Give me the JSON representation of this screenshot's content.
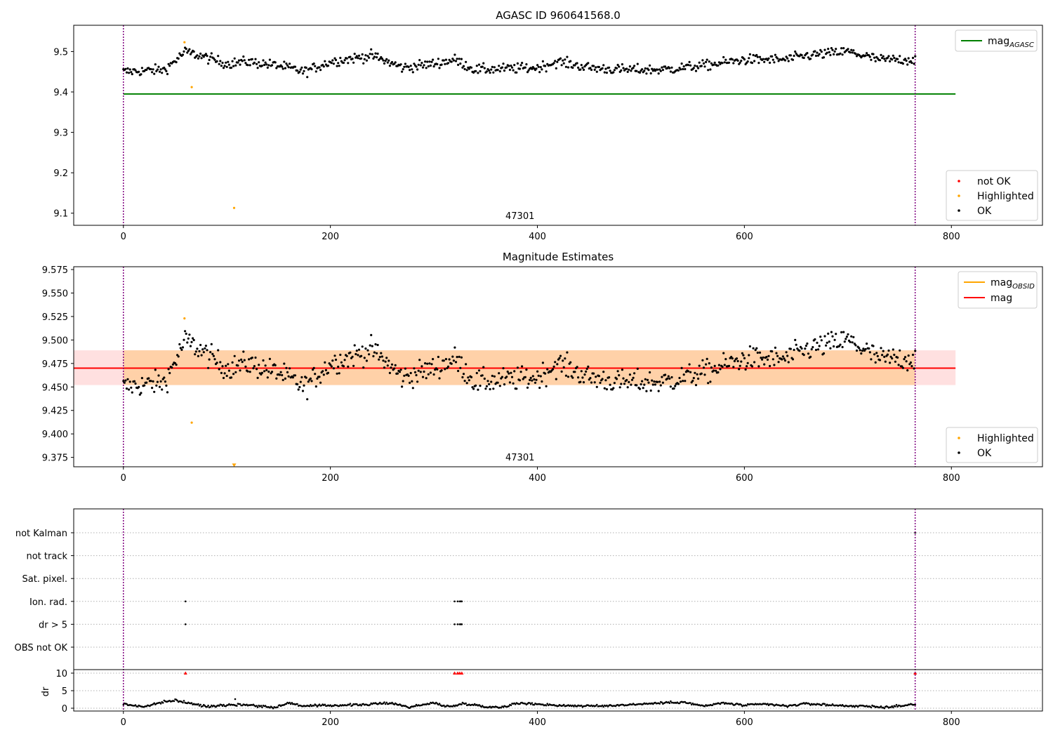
{
  "chart_data": [
    {
      "type": "scatter",
      "title": "AGASC ID 960641568.0",
      "xlim": [
        -48,
        888
      ],
      "ylim": [
        9.07,
        9.565
      ],
      "xticks": [
        0,
        200,
        400,
        600,
        800
      ],
      "yticks": [
        9.1,
        9.2,
        9.3,
        9.4,
        9.5
      ],
      "ytick_labels": [
        "9.1",
        "9.2",
        "9.3",
        "9.4",
        "9.5"
      ],
      "obsid_label": "47301",
      "obsid_label_x": 380,
      "vlines_x": [
        0,
        765
      ],
      "mag_agasc": {
        "value": 9.395,
        "x_range": [
          0,
          804
        ],
        "color": "#008000"
      },
      "legend_lines": [
        {
          "label": "mag",
          "sub": "AGASC",
          "color": "#008000"
        }
      ],
      "legend_points": [
        {
          "label": "not OK",
          "color": "#ff0000"
        },
        {
          "label": "Highlighted",
          "color": "#ffa500"
        },
        {
          "label": "OK",
          "color": "#000000"
        }
      ],
      "series": [
        {
          "name": "OK",
          "color": "#000000",
          "x_start": 0,
          "x_end": 765,
          "n": 720,
          "base": 9.47,
          "anchors": [
            [
              0,
              9.45
            ],
            [
              40,
              9.455
            ],
            [
              60,
              9.5
            ],
            [
              80,
              9.485
            ],
            [
              100,
              9.47
            ],
            [
              120,
              9.475
            ],
            [
              150,
              9.465
            ],
            [
              175,
              9.45
            ],
            [
              200,
              9.475
            ],
            [
              240,
              9.49
            ],
            [
              270,
              9.46
            ],
            [
              300,
              9.47
            ],
            [
              320,
              9.48
            ],
            [
              340,
              9.455
            ],
            [
              400,
              9.46
            ],
            [
              420,
              9.475
            ],
            [
              450,
              9.46
            ],
            [
              480,
              9.455
            ],
            [
              520,
              9.455
            ],
            [
              560,
              9.465
            ],
            [
              600,
              9.48
            ],
            [
              640,
              9.48
            ],
            [
              660,
              9.49
            ],
            [
              700,
              9.5
            ],
            [
              730,
              9.48
            ],
            [
              765,
              9.48
            ]
          ],
          "noise": 0.012
        },
        {
          "name": "Highlighted",
          "color": "#ffa500",
          "points": [
            [
              59,
              9.523
            ],
            [
              66,
              9.412
            ],
            [
              107,
              9.113
            ]
          ]
        }
      ]
    },
    {
      "type": "scatter",
      "title": "Magnitude Estimates",
      "xlim": [
        -48,
        888
      ],
      "ylim": [
        9.365,
        9.578
      ],
      "xticks": [
        0,
        200,
        400,
        600,
        800
      ],
      "yticks": [
        9.375,
        9.4,
        9.425,
        9.45,
        9.475,
        9.5,
        9.525,
        9.55,
        9.575
      ],
      "ytick_labels": [
        "9.375",
        "9.400",
        "9.425",
        "9.450",
        "9.475",
        "9.500",
        "9.525",
        "9.550",
        "9.575"
      ],
      "obsid_label": "47301",
      "obsid_label_x": 380,
      "vlines_x": [
        0,
        765
      ],
      "mag": {
        "value": 9.47,
        "band": [
          9.452,
          9.489
        ],
        "x_range": [
          -48,
          804
        ],
        "color": "#ff0000"
      },
      "mag_obsid": {
        "value": 9.47,
        "band": [
          9.452,
          9.489
        ],
        "x_range": [
          0,
          765
        ],
        "color": "#ffa500"
      },
      "legend_lines": [
        {
          "label": "mag",
          "sub": "OBSID",
          "color": "#ffa500"
        },
        {
          "label": "mag",
          "sub": "",
          "color": "#ff0000"
        }
      ],
      "legend_points": [
        {
          "label": "Highlighted",
          "color": "#ffa500"
        },
        {
          "label": "OK",
          "color": "#000000"
        }
      ],
      "series": [
        {
          "name": "OK",
          "color": "#000000",
          "x_start": 0,
          "x_end": 765,
          "n": 720,
          "base": 9.47,
          "anchors": [
            [
              0,
              9.45
            ],
            [
              40,
              9.455
            ],
            [
              60,
              9.5
            ],
            [
              80,
              9.485
            ],
            [
              100,
              9.47
            ],
            [
              120,
              9.475
            ],
            [
              150,
              9.465
            ],
            [
              175,
              9.45
            ],
            [
              200,
              9.475
            ],
            [
              240,
              9.49
            ],
            [
              270,
              9.46
            ],
            [
              300,
              9.47
            ],
            [
              320,
              9.48
            ],
            [
              340,
              9.455
            ],
            [
              400,
              9.46
            ],
            [
              420,
              9.475
            ],
            [
              450,
              9.46
            ],
            [
              480,
              9.455
            ],
            [
              520,
              9.455
            ],
            [
              560,
              9.465
            ],
            [
              600,
              9.48
            ],
            [
              640,
              9.48
            ],
            [
              660,
              9.49
            ],
            [
              700,
              9.5
            ],
            [
              730,
              9.48
            ],
            [
              765,
              9.48
            ]
          ],
          "noise": 0.012
        },
        {
          "name": "Highlighted",
          "color": "#ffa500",
          "points": [
            [
              59,
              9.523
            ],
            [
              66,
              9.412
            ]
          ],
          "offscale_points": [
            [
              107,
              9.367
            ]
          ]
        }
      ]
    },
    {
      "type": "scatter",
      "xlim": [
        -48,
        888
      ],
      "xticks": [
        0,
        200,
        400,
        600,
        800
      ],
      "vlines_x": [
        0,
        765
      ],
      "flag_categories": [
        "not Kalman",
        "not track",
        "Sat. pixel.",
        "Ion. rad.",
        "dr > 5",
        "OBS not OK"
      ],
      "flag_points": [
        {
          "category": "Ion. rad.",
          "x": [
            60,
            320,
            323,
            325,
            326,
            327
          ]
        },
        {
          "category": "dr > 5",
          "x": [
            60,
            320,
            323,
            325,
            326,
            327
          ]
        },
        {
          "category": "not Kalman",
          "x": [
            765
          ]
        }
      ],
      "dr": {
        "ylabel": "dr",
        "ylim": [
          -0.8,
          11
        ],
        "yticks": [
          0,
          5,
          10
        ],
        "ytick_labels": [
          "0",
          "5",
          "10"
        ],
        "outliers": [
          [
            60,
            10
          ],
          [
            320,
            10
          ],
          [
            323,
            10
          ],
          [
            325,
            10
          ],
          [
            327,
            10
          ],
          [
            765,
            10
          ],
          [
            108,
            2.6
          ]
        ],
        "series": {
          "name": "dr",
          "color": "#000000",
          "x_start": 0,
          "x_end": 765,
          "n": 720,
          "anchors": [
            [
              0,
              1.2
            ],
            [
              20,
              0.4
            ],
            [
              30,
              1.2
            ],
            [
              50,
              2.3
            ],
            [
              55,
              2.0
            ],
            [
              62,
              1.5
            ],
            [
              80,
              0.5
            ],
            [
              100,
              1.0
            ],
            [
              120,
              1.0
            ],
            [
              145,
              0.2
            ],
            [
              160,
              1.5
            ],
            [
              175,
              0.6
            ],
            [
              200,
              0.8
            ],
            [
              230,
              1.0
            ],
            [
              260,
              1.5
            ],
            [
              275,
              0.3
            ],
            [
              300,
              1.5
            ],
            [
              315,
              0.4
            ],
            [
              330,
              1.4
            ],
            [
              350,
              0.4
            ],
            [
              365,
              0.3
            ],
            [
              380,
              1.4
            ],
            [
              400,
              1.2
            ],
            [
              420,
              0.8
            ],
            [
              460,
              0.6
            ],
            [
              500,
              1.2
            ],
            [
              540,
              1.8
            ],
            [
              560,
              0.6
            ],
            [
              580,
              1.5
            ],
            [
              600,
              0.8
            ],
            [
              620,
              1.2
            ],
            [
              640,
              0.6
            ],
            [
              660,
              1.3
            ],
            [
              690,
              0.8
            ],
            [
              720,
              0.5
            ],
            [
              740,
              0.3
            ],
            [
              760,
              1.0
            ]
          ],
          "noise": 0.3
        }
      }
    }
  ]
}
